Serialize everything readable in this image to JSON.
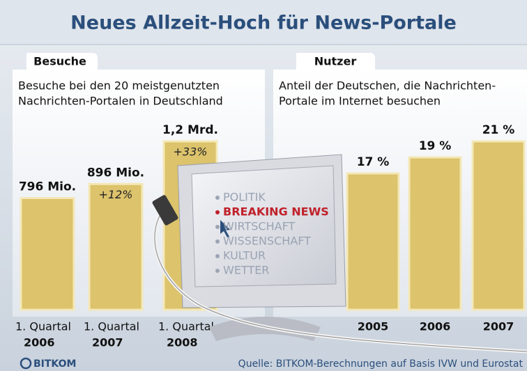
{
  "title": "Neues Allzeit-Hoch für News-Portale",
  "chart_data": [
    {
      "type": "bar",
      "tab": "Besuche",
      "subtitle": [
        "Besuche bei den 20 meistgenutzten",
        "Nachrichten-Portalen in Deutschland"
      ],
      "categories": [
        [
          "1. Quartal",
          "2006"
        ],
        [
          "1. Quartal",
          "2007"
        ],
        [
          "1. Quartal",
          "2008"
        ]
      ],
      "values": [
        796,
        896,
        1200
      ],
      "value_labels": [
        "796 Mio.",
        "896 Mio.",
        "1,2 Mrd."
      ],
      "growth_labels": [
        null,
        "+12%",
        "+33%"
      ],
      "color": "#dcc36c"
    },
    {
      "type": "bar",
      "tab": "Nutzer",
      "subtitle": [
        "Anteil der Deutschen, die Nachrichten-",
        "Portale im Internet besuchen"
      ],
      "categories": [
        [
          "2005"
        ],
        [
          "2006"
        ],
        [
          "2007"
        ]
      ],
      "values": [
        17,
        19,
        21
      ],
      "value_labels": [
        "17 %",
        "19 %",
        "21 %"
      ],
      "color": "#dcc36c"
    }
  ],
  "screen": [
    "POLITIK",
    "BREAKING NEWS",
    "WIRTSCHAFT",
    "WISSENSCHAFT",
    "KULTUR",
    "WETTER"
  ],
  "logo": "BITKOM",
  "source": "Quelle: BITKOM-Berechnungen auf Basis IVW und Eurostat"
}
